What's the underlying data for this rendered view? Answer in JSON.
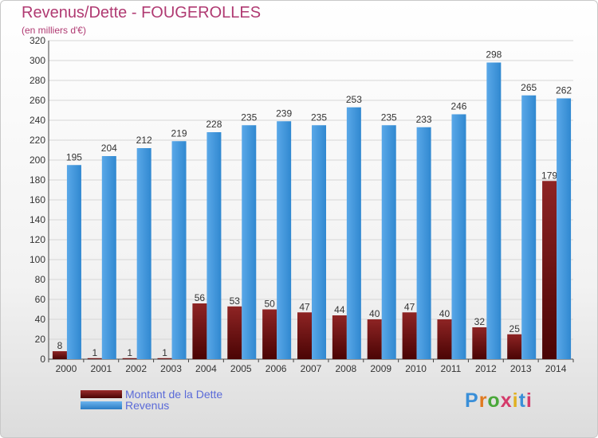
{
  "header": {
    "title": "Revenus/Dette - FOUGEROLLES",
    "subtitle": "(en milliers d'€)"
  },
  "legend": {
    "items": [
      {
        "label": "Montant de la Dette",
        "color": "#6e0f0f"
      },
      {
        "label": "Revenus",
        "color": "#3d93d9"
      }
    ]
  },
  "logo": {
    "text": "Proxiti"
  },
  "chart_data": {
    "type": "bar",
    "categories": [
      "2000",
      "2001",
      "2002",
      "2003",
      "2004",
      "2005",
      "2006",
      "2007",
      "2008",
      "2009",
      "2010",
      "2011",
      "2012",
      "2013",
      "2014"
    ],
    "series": [
      {
        "name": "Montant de la Dette",
        "values": [
          8,
          1,
          1,
          1,
          56,
          53,
          50,
          47,
          44,
          40,
          47,
          40,
          32,
          25,
          179
        ],
        "color": "#6e0f0f"
      },
      {
        "name": "Revenus",
        "values": [
          195,
          204,
          212,
          219,
          228,
          235,
          239,
          235,
          253,
          235,
          233,
          246,
          298,
          265,
          262
        ],
        "color": "#3d93d9"
      }
    ],
    "title": "Revenus/Dette - FOUGEROLLES",
    "ylabel": "(en milliers d'€)",
    "ylim": [
      0,
      320
    ],
    "yticks": [
      0,
      20,
      40,
      60,
      80,
      100,
      120,
      140,
      160,
      180,
      200,
      220,
      240,
      260,
      280,
      300,
      320
    ],
    "grid": true,
    "legend_position": "bottom-left"
  }
}
